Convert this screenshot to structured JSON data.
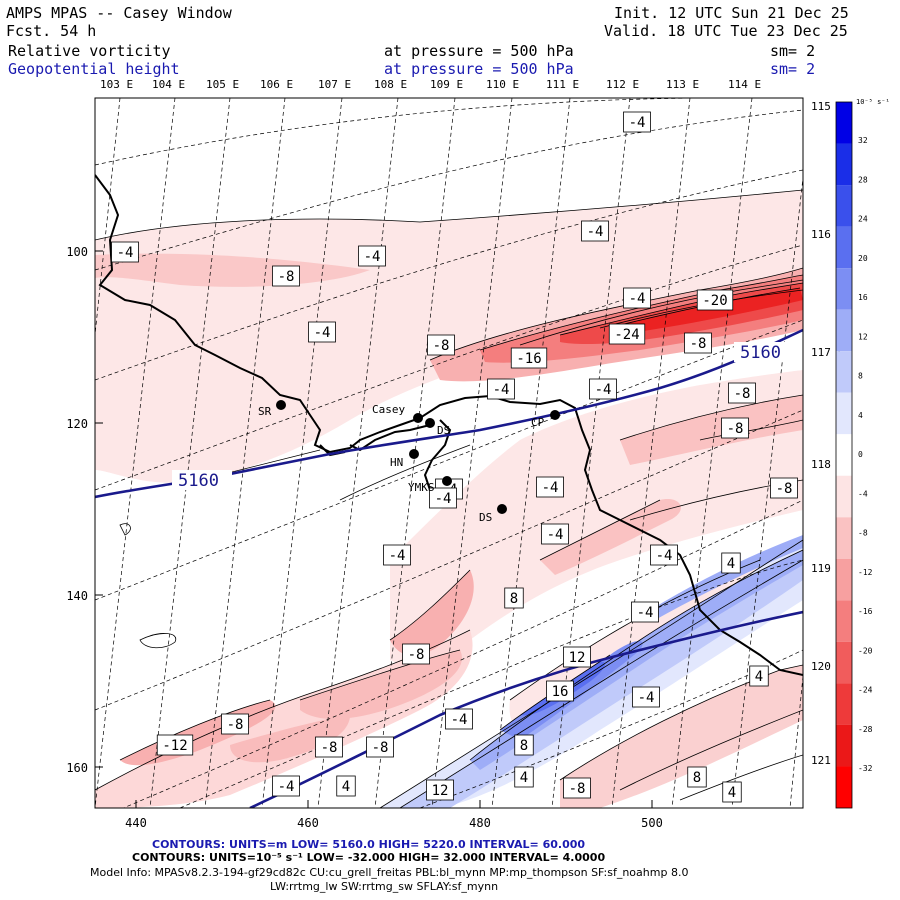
{
  "header": {
    "title": "AMPS MPAS -- Casey Window",
    "forecast": "Fcst.   54 h",
    "init": "Init. 12 UTC Sun 21 Dec 25",
    "valid": "Valid. 18 UTC Tue 23 Dec 25",
    "field1": {
      "name": "Relative vorticity",
      "level": "at pressure =  500 hPa",
      "smooth": "sm= 2"
    },
    "field2": {
      "name": "Geopotential height",
      "level": "at pressure =  500 hPa",
      "smooth": "sm= 2"
    }
  },
  "lon_top_labels": [
    "103 E",
    "104 E",
    "105 E",
    "106 E",
    "107 E",
    "108 E",
    "109 E",
    "110 E",
    "111 E",
    "112 E",
    "113 E",
    "114 E"
  ],
  "lon_right_labels": [
    "115 E",
    "116 E",
    "117 E",
    "118 E",
    "119 E",
    "120 E",
    "121 E"
  ],
  "x_ticks": [
    "440",
    "460",
    "480",
    "500"
  ],
  "y_ticks": [
    "100",
    "120",
    "140",
    "160"
  ],
  "stations": [
    {
      "name": "SR"
    },
    {
      "name": "Casey"
    },
    {
      "name": "DS"
    },
    {
      "name": "HN"
    },
    {
      "name": "YMKS"
    },
    {
      "name": "DS"
    },
    {
      "name": "CP"
    }
  ],
  "height_labels": [
    "5160",
    "5160"
  ],
  "vort_labels": [
    "-4",
    "-4",
    "-4",
    "-8",
    "-4",
    "-4",
    "-4",
    "-20",
    "-8",
    "-24",
    "-8",
    "-16",
    "-4",
    "-4",
    "-8",
    "-8",
    "-4",
    "-4",
    "-8",
    "-4",
    "-4",
    "-4",
    "4",
    "-4",
    "8",
    "-8",
    "12",
    "-4",
    "16",
    "-8",
    "-12",
    "-8",
    "-8",
    "8",
    "-4",
    "4",
    "4",
    "8",
    "4",
    "12",
    "-8",
    "4",
    "-4",
    "-4"
  ],
  "colorbar": {
    "unit": "10⁻⁵ s⁻¹",
    "labels": [
      "32",
      "28",
      "24",
      "20",
      "16",
      "12",
      "8",
      "4",
      "0",
      "-4",
      "-8",
      "-12",
      "-16",
      "-20",
      "-24",
      "-28",
      "-32"
    ],
    "colors": [
      "#0000e6",
      "#1a2ee8",
      "#3a50ec",
      "#5a6ff0",
      "#7c8ef3",
      "#9eadf7",
      "#c0cafa",
      "#e2e7fd",
      "#ffffff",
      "#fde4e4",
      "#fac2c2",
      "#f7a0a0",
      "#f47e7e",
      "#f15c5c",
      "#ee3a3a",
      "#eb1818",
      "#ff0000"
    ]
  },
  "footer": {
    "line1": "CONTOURS:  UNITS=m  LOW=  5160.0      HIGH=  5220.0      INTERVAL=   60.000",
    "line2": "CONTOURS:  UNITS=10⁻⁵ s⁻¹  LOW= -32.000      HIGH=  32.000      INTERVAL=   4.0000",
    "line3": "Model Info: MPASv8.2.3-194-gf29cd82c CU:cu_grell_freitas PBL:bl_mynn MP:mp_thompson SF:sf_noahmp 8.0",
    "line4": "LW:rrtmg_lw SW:rrtmg_sw SFLAY:sf_mynn"
  }
}
